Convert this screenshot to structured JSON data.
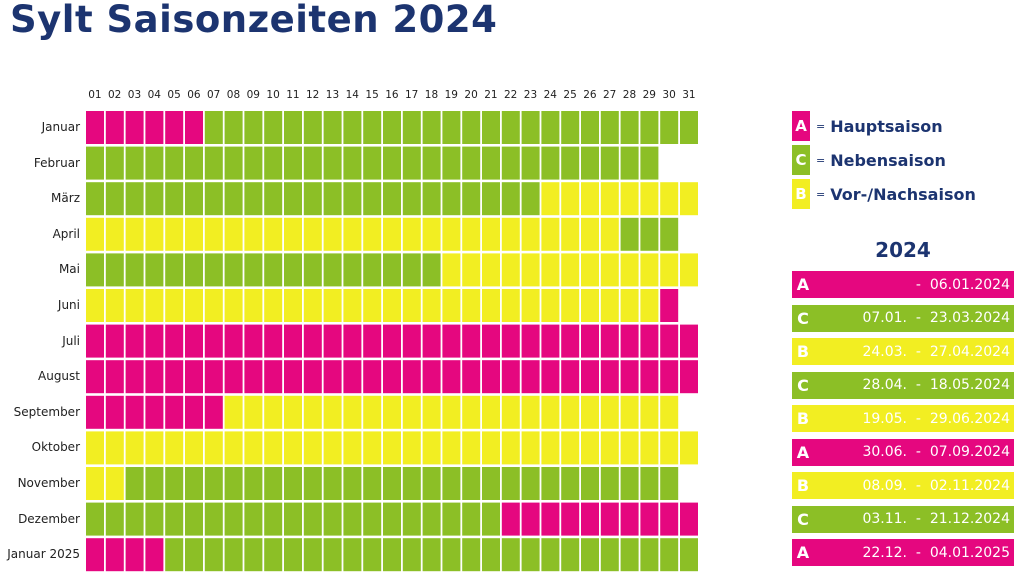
{
  "title": "Sylt Saisonzeiten 2024",
  "colors": {
    "A": "#e5077f",
    "B": "#f2ee22",
    "C": "#8cbf26",
    "text_dark": "#1c3470"
  },
  "legend": [
    {
      "code": "A",
      "eq": "=",
      "label": "Hauptsaison"
    },
    {
      "code": "C",
      "eq": "=",
      "label": "Nebensaison"
    },
    {
      "code": "B",
      "eq": "=",
      "label": "Vor-/Nachsaison"
    }
  ],
  "periods_year": "2024",
  "periods": [
    {
      "code": "A",
      "dates": "-  06.01.2024"
    },
    {
      "code": "C",
      "dates": "07.01.  -  23.03.2024"
    },
    {
      "code": "B",
      "dates": "24.03.  -  27.04.2024"
    },
    {
      "code": "C",
      "dates": "28.04.  -  18.05.2024"
    },
    {
      "code": "B",
      "dates": "19.05.  -  29.06.2024"
    },
    {
      "code": "A",
      "dates": "30.06.  -  07.09.2024"
    },
    {
      "code": "B",
      "dates": "08.09.  -  02.11.2024"
    },
    {
      "code": "C",
      "dates": "03.11.  -  21.12.2024"
    },
    {
      "code": "A",
      "dates": "22.12.  -  04.01.2025"
    }
  ],
  "chart_data": {
    "type": "heatmap",
    "title": "Sylt Saisonzeiten 2024",
    "x": [
      "01",
      "02",
      "03",
      "04",
      "05",
      "06",
      "07",
      "08",
      "09",
      "10",
      "11",
      "12",
      "13",
      "14",
      "15",
      "16",
      "17",
      "18",
      "19",
      "20",
      "21",
      "22",
      "23",
      "24",
      "25",
      "26",
      "27",
      "28",
      "29",
      "30",
      "31"
    ],
    "rows": [
      {
        "label": "Januar",
        "days": 31,
        "segments": [
          [
            "A",
            6
          ],
          [
            "C",
            25
          ]
        ]
      },
      {
        "label": "Februar",
        "days": 29,
        "segments": [
          [
            "C",
            29
          ]
        ]
      },
      {
        "label": "März",
        "days": 31,
        "segments": [
          [
            "C",
            23
          ],
          [
            "B",
            8
          ]
        ]
      },
      {
        "label": "April",
        "days": 30,
        "segments": [
          [
            "B",
            27
          ],
          [
            "C",
            3
          ]
        ]
      },
      {
        "label": "Mai",
        "days": 31,
        "segments": [
          [
            "C",
            18
          ],
          [
            "B",
            13
          ]
        ]
      },
      {
        "label": "Juni",
        "days": 30,
        "segments": [
          [
            "B",
            29
          ],
          [
            "A",
            1
          ]
        ]
      },
      {
        "label": "Juli",
        "days": 31,
        "segments": [
          [
            "A",
            31
          ]
        ]
      },
      {
        "label": "August",
        "days": 31,
        "segments": [
          [
            "A",
            31
          ]
        ]
      },
      {
        "label": "September",
        "days": 30,
        "segments": [
          [
            "A",
            7
          ],
          [
            "B",
            23
          ]
        ]
      },
      {
        "label": "Oktober",
        "days": 31,
        "segments": [
          [
            "B",
            31
          ]
        ]
      },
      {
        "label": "November",
        "days": 30,
        "segments": [
          [
            "B",
            2
          ],
          [
            "C",
            28
          ]
        ]
      },
      {
        "label": "Dezember",
        "days": 31,
        "segments": [
          [
            "C",
            21
          ],
          [
            "A",
            10
          ]
        ]
      },
      {
        "label": "Januar 2025",
        "days": 31,
        "segments": [
          [
            "A",
            4
          ],
          [
            "C",
            27
          ]
        ]
      }
    ]
  }
}
